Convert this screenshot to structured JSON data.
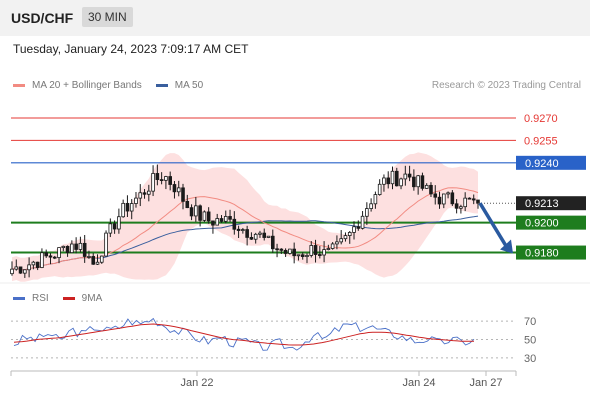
{
  "header": {
    "symbol": "USD/CHF",
    "timeframe": "30 MIN",
    "datetime": "Tuesday, January 24, 2023 7:09:17 AM CET"
  },
  "legend": {
    "ma20_label": "MA 20 + Bollinger Bands",
    "ma50_label": "MA 50",
    "rsi_label": "RSI",
    "ma9_label": "9MA",
    "credit": "Research © 2023 Trading Central"
  },
  "colors": {
    "ma20": "#f28b82",
    "ma50": "#3a5f9e",
    "bollinger": "#fde0e0",
    "up_candle": "#1a1a1a",
    "down_candle": "#1a1a1a",
    "resistance": "#e53935",
    "pivot": "#2962c8",
    "support": "#1e7d1e",
    "current_price": "#222222",
    "rsi": "#4a70c8",
    "ma9": "#cc2222",
    "arrow": "#2a5aa0"
  },
  "chart_data": [
    {
      "type": "candlestick",
      "title": "USD/CHF 30 MIN",
      "x_ticks": [
        "Jan 22",
        "Jan 24",
        "Jan 27"
      ],
      "ylim": [
        0.9167,
        0.9282
      ],
      "levels": [
        {
          "value": 0.927,
          "label": "0.9270",
          "kind": "resistance"
        },
        {
          "value": 0.9255,
          "label": "0.9255",
          "kind": "resistance"
        },
        {
          "value": 0.924,
          "label": "0.9240",
          "kind": "pivot"
        },
        {
          "value": 0.92,
          "label": "0.9200",
          "kind": "support"
        },
        {
          "value": 0.918,
          "label": "0.9180",
          "kind": "support"
        }
      ],
      "current_price": {
        "value": 0.9213,
        "label": "0.9213"
      },
      "forecast_arrow": {
        "from": 0.9213,
        "to": 0.918,
        "direction": "down"
      },
      "close_path": [
        0.9169,
        0.9171,
        0.9174,
        0.9177,
        0.918,
        0.9186,
        0.9184,
        0.9172,
        0.9187,
        0.9203,
        0.9212,
        0.9218,
        0.9227,
        0.9232,
        0.9224,
        0.9212,
        0.9205,
        0.9201,
        0.9202,
        0.92,
        0.9195,
        0.9193,
        0.9186,
        0.9182,
        0.9178,
        0.918,
        0.9183,
        0.9178,
        0.9183,
        0.9192,
        0.9205,
        0.9218,
        0.9228,
        0.923,
        0.9232,
        0.9225,
        0.9218,
        0.9216,
        0.9215,
        0.9214,
        0.9213
      ],
      "close_path_note_x": "evenly spaced 30-minute sessions from left edge to last candle"
    },
    {
      "type": "line",
      "title": "RSI",
      "y_ticks": [
        70,
        50,
        30
      ],
      "ylim": [
        20,
        80
      ],
      "series": [
        {
          "name": "RSI",
          "values": [
            45,
            52,
            50,
            57,
            48,
            61,
            55,
            64,
            60,
            62,
            71,
            67,
            73,
            66,
            60,
            57,
            51,
            48,
            53,
            46,
            49,
            44,
            41,
            47,
            40,
            45,
            55,
            50,
            60,
            66,
            63,
            64,
            59,
            56,
            52,
            48,
            51,
            46,
            50,
            47,
            49
          ]
        },
        {
          "name": "9MA",
          "values": [
            47,
            48,
            50,
            51,
            52,
            54,
            56,
            58,
            60,
            62,
            64,
            66,
            67,
            66,
            64,
            61,
            58,
            55,
            52,
            50,
            49,
            47,
            46,
            45,
            44,
            44,
            45,
            47,
            50,
            53,
            56,
            58,
            58,
            57,
            55,
            53,
            51,
            50,
            49,
            48,
            48
          ]
        }
      ]
    }
  ]
}
